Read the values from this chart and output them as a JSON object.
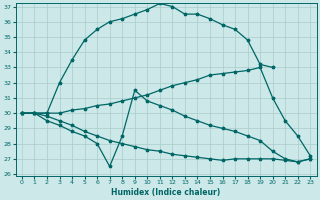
{
  "xlabel": "Humidex (Indice chaleur)",
  "bg_color": "#cce8e8",
  "grid_color": "#aacccc",
  "line_color": "#006666",
  "ylim": [
    26,
    37
  ],
  "xlim": [
    -0.5,
    23.5
  ],
  "yticks": [
    26,
    27,
    28,
    29,
    30,
    31,
    32,
    33,
    34,
    35,
    36,
    37
  ],
  "xticks": [
    0,
    1,
    2,
    3,
    4,
    5,
    6,
    7,
    8,
    9,
    10,
    11,
    12,
    13,
    14,
    15,
    16,
    17,
    18,
    19,
    20,
    21,
    22,
    23
  ],
  "line1_x": [
    0,
    1,
    2,
    3,
    4,
    5,
    6,
    7,
    8,
    9,
    10,
    11,
    12,
    13,
    14,
    15,
    16,
    17,
    18,
    19,
    20
  ],
  "line1_y": [
    30.0,
    30.0,
    30.0,
    32.0,
    33.5,
    34.8,
    35.5,
    36.0,
    36.2,
    36.5,
    36.8,
    37.2,
    37.0,
    36.5,
    36.5,
    36.2,
    35.8,
    35.5,
    34.8,
    33.2,
    33.0
  ],
  "line2_x": [
    0,
    1,
    2,
    3,
    4,
    5,
    6,
    7,
    8,
    9,
    10,
    11,
    12,
    13,
    14,
    15,
    16,
    17,
    18,
    19,
    20,
    21,
    22,
    23
  ],
  "line2_y": [
    30.0,
    30.0,
    30.0,
    30.0,
    30.2,
    30.3,
    30.5,
    30.6,
    30.8,
    31.0,
    31.2,
    31.5,
    31.8,
    32.0,
    32.2,
    32.5,
    32.6,
    32.7,
    32.8,
    33.0,
    31.0,
    29.5,
    28.5,
    27.2
  ],
  "line3_x": [
    0,
    1,
    2,
    3,
    4,
    5,
    6,
    7,
    8,
    9,
    10,
    11,
    12,
    13,
    14,
    15,
    16,
    17,
    18,
    19,
    20,
    21,
    22,
    23
  ],
  "line3_y": [
    30.0,
    30.0,
    29.5,
    29.2,
    28.8,
    28.5,
    28.0,
    26.5,
    28.5,
    31.5,
    30.8,
    30.5,
    30.2,
    29.8,
    29.5,
    29.2,
    29.0,
    28.8,
    28.5,
    28.2,
    27.5,
    27.0,
    26.8,
    27.0
  ],
  "line4_x": [
    0,
    1,
    2,
    3,
    4,
    5,
    6,
    7,
    8,
    9,
    10,
    11,
    12,
    13,
    14,
    15,
    16,
    17,
    18,
    19,
    20,
    21,
    22,
    23
  ],
  "line4_y": [
    30.0,
    30.0,
    29.8,
    29.5,
    29.2,
    28.8,
    28.5,
    28.2,
    28.0,
    27.8,
    27.6,
    27.5,
    27.3,
    27.2,
    27.1,
    27.0,
    26.9,
    27.0,
    27.0,
    27.0,
    27.0,
    26.9,
    26.8,
    27.0
  ]
}
